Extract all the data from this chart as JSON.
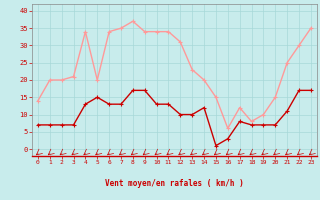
{
  "hours": [
    0,
    1,
    2,
    3,
    4,
    5,
    6,
    7,
    8,
    9,
    10,
    11,
    12,
    13,
    14,
    15,
    16,
    17,
    18,
    19,
    20,
    21,
    22,
    23
  ],
  "vent_moyen": [
    7,
    7,
    7,
    7,
    13,
    15,
    13,
    13,
    17,
    17,
    13,
    13,
    10,
    10,
    12,
    1,
    3,
    8,
    7,
    7,
    7,
    11,
    17,
    17
  ],
  "rafales": [
    14,
    20,
    20,
    21,
    34,
    20,
    34,
    35,
    37,
    34,
    34,
    34,
    31,
    23,
    20,
    15,
    6,
    12,
    8,
    10,
    15,
    25,
    30,
    35
  ],
  "color_moyen": "#cc0000",
  "color_rafales": "#ff9999",
  "bg_color": "#c8ecec",
  "grid_color": "#a8d8d8",
  "xlabel": "Vent moyen/en rafales ( km/h )",
  "xlabel_color": "#cc0000",
  "ylabel_ticks": [
    0,
    5,
    10,
    15,
    20,
    25,
    30,
    35,
    40
  ],
  "ylim": [
    -2,
    42
  ],
  "xlim": [
    -0.5,
    23.5
  ],
  "tick_color": "#cc0000",
  "arrow_color": "#cc0000",
  "line_width": 1.0,
  "marker_size": 2.5
}
